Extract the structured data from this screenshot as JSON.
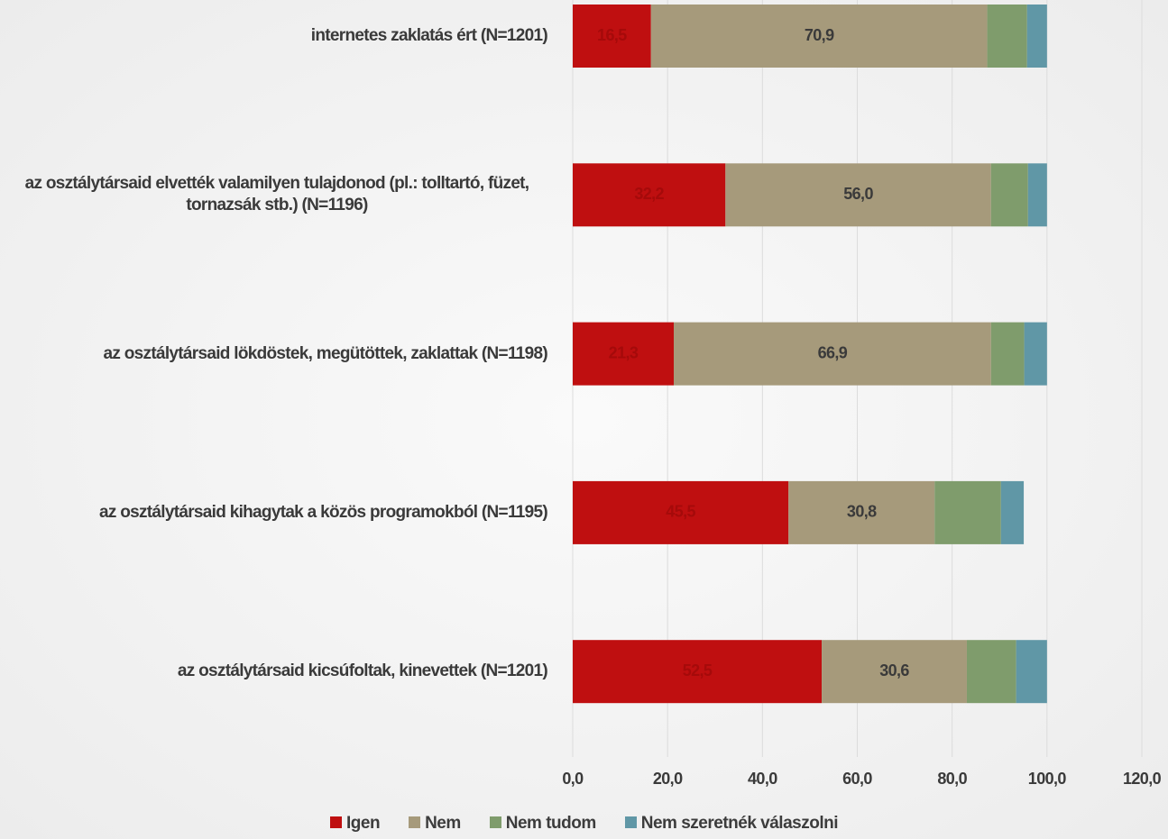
{
  "chart_data": {
    "type": "stacked-bar-horizontal",
    "categories": [
      "internetes zaklatás ért (N=1201)",
      "az osztálytársaid elvették valamilyen tulajdonod (pl.: tolltartó, füzet, tornazsák stb.) (N=1196)",
      "az osztálytársaid lökdöstek, megütöttek, zaklattak (N=1198)",
      "az osztálytársaid kihagytak a közös programokból (N=1195)",
      "az osztálytársaid kicsúfoltak, kinevettek (N=1201)"
    ],
    "series": [
      {
        "name": "Igen",
        "color": "#bf0f10",
        "values": [
          16.5,
          32.2,
          21.3,
          45.5,
          52.5
        ],
        "value_labels": [
          "16,5",
          "32,2",
          "21,3",
          "45,5",
          "52,5"
        ],
        "label_color": "#a50a0a"
      },
      {
        "name": "Nem",
        "color": "#a69a7b",
        "values": [
          70.9,
          56.0,
          66.9,
          30.8,
          30.6
        ],
        "value_labels": [
          "70,9",
          "56,0",
          "66,9",
          "30,8",
          "30,6"
        ],
        "label_color": "#3a3a3a"
      },
      {
        "name": "Nem tudom",
        "color": "#7f9c6c",
        "values": [
          8.4,
          7.8,
          7.0,
          14.0,
          10.4
        ]
      },
      {
        "name": "Nem szeretnék válaszolni",
        "color": "#6097a6",
        "values": [
          4.2,
          4.0,
          4.8,
          4.8,
          6.5
        ]
      }
    ],
    "xlim": [
      0,
      120
    ],
    "xticks": [
      {
        "value": 0,
        "label": "0,0"
      },
      {
        "value": 20,
        "label": "20,0"
      },
      {
        "value": 40,
        "label": "40,0"
      },
      {
        "value": 60,
        "label": "60,0"
      },
      {
        "value": 80,
        "label": "80,0"
      },
      {
        "value": 100,
        "label": "100,0"
      },
      {
        "value": 120,
        "label": "120,0"
      }
    ],
    "grid": true,
    "legend": "bottom"
  }
}
